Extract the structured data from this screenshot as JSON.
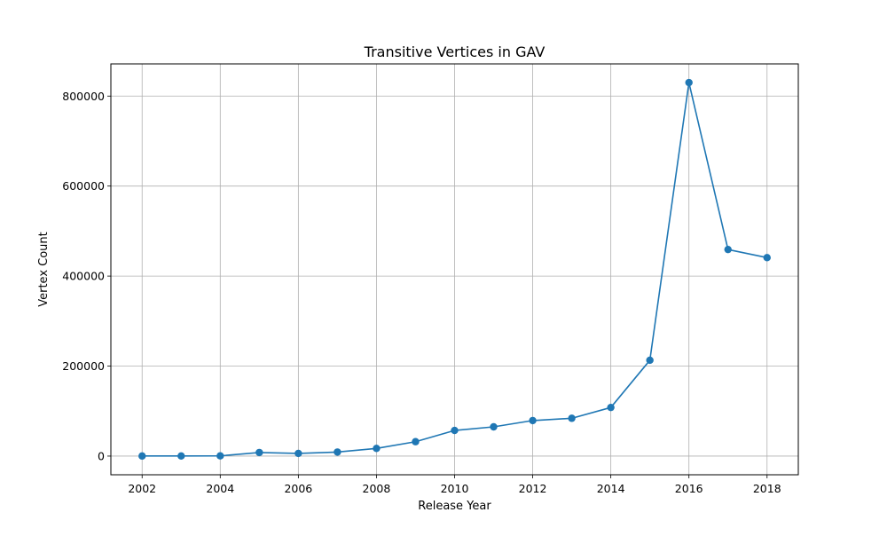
{
  "chart_data": {
    "type": "line",
    "title": "Transitive Vertices in GAV",
    "xlabel": "Release Year",
    "ylabel": "Vertex Count",
    "x": [
      2002,
      2003,
      2004,
      2005,
      2006,
      2007,
      2008,
      2009,
      2010,
      2011,
      2012,
      2013,
      2014,
      2015,
      2016,
      2017,
      2018
    ],
    "series": [
      {
        "values": [
          200,
          300,
          500,
          8000,
          6000,
          9000,
          17000,
          32000,
          57000,
          65000,
          79000,
          84000,
          108000,
          213000,
          830000,
          459000,
          441000
        ],
        "color": "#1f77b4",
        "marker": "circle"
      }
    ],
    "xlim": [
      2001.2,
      2018.8
    ],
    "ylim": [
      -41500,
      871500
    ],
    "xticks": [
      2002,
      2004,
      2006,
      2008,
      2010,
      2012,
      2014,
      2016,
      2018
    ],
    "yticks": [
      0,
      200000,
      400000,
      600000,
      800000
    ],
    "xtick_labels": [
      "2002",
      "2004",
      "2006",
      "2008",
      "2010",
      "2012",
      "2014",
      "2016",
      "2018"
    ],
    "ytick_labels": [
      "0",
      "200000",
      "400000",
      "600000",
      "800000"
    ],
    "grid": true,
    "legend": false
  }
}
